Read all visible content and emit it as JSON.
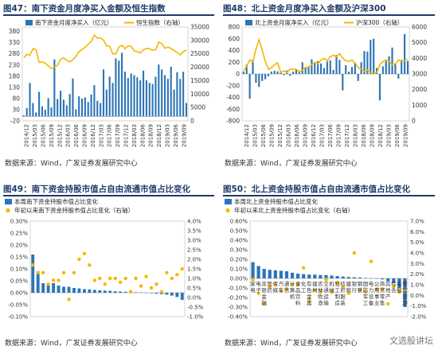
{
  "panels": [
    {
      "title": "图47：南下资金月度净买入金额及恒生指数",
      "source": "数据来源：Wind，广发证券发展研究中心"
    },
    {
      "title": "图48：北上资金月度净买入金额及沪深300",
      "source": "数据来源：Wind，广发证券发展研究中心"
    },
    {
      "title": "图49：南下资金持股市值占自由流通市值占比变化",
      "source": "数据来源：Wind，广发证券发展研究中心"
    },
    {
      "title": "图50：北上资金持股市值占自由流通市值占比变化",
      "source": "数据来源：Wind，广发证券发展研究中心"
    }
  ],
  "watermark": "文选股讲坛",
  "colors": {
    "bar": "#2e75b6",
    "line": "#f5b700",
    "title": "#1f3a68"
  },
  "chart_data": [
    {
      "type": "bar",
      "combo": "bar+line",
      "x_ticks": [
        "2014/12",
        "2015/03",
        "2015/06",
        "2015/09",
        "2015/12",
        "2016/03",
        "2016/06",
        "2016/09",
        "2016/12",
        "2017/03",
        "2017/06",
        "2017/09",
        "2017/12",
        "2018/03",
        "2018/06",
        "2018/09",
        "2018/12",
        "2019/03",
        "2019/06",
        "2019/09"
      ],
      "ylim": [
        -20,
        400
      ],
      "yticks": [
        -20,
        30,
        80,
        130,
        180,
        230,
        280,
        330,
        380
      ],
      "y2lim": [
        0,
        35000
      ],
      "y2ticks": [
        0,
        5000,
        10000,
        15000,
        20000,
        25000,
        30000,
        35000
      ],
      "series": [
        {
          "name": "南下资金月度净买入（亿元）",
          "type": "bar",
          "values": [
            5,
            38,
            150,
            60,
            18,
            110,
            45,
            30,
            82,
            40,
            255,
            78,
            115,
            75,
            50,
            100,
            170,
            32,
            90,
            80,
            85,
            64,
            98,
            140,
            70,
            60,
            210,
            120,
            178,
            150,
            260,
            250,
            285,
            200,
            172,
            192,
            185,
            175,
            162,
            205,
            162,
            150,
            145,
            178,
            232,
            210,
            185,
            168,
            222,
            120,
            198,
            168,
            200,
            60
          ]
        },
        {
          "name": "恒生指数（右轴）",
          "type": "line",
          "axis": "right",
          "values": [
            23600,
            24800,
            24500,
            27000,
            26500,
            21800,
            22000,
            21500,
            20500,
            19500,
            20100,
            20800,
            23000,
            23500,
            22500,
            22000,
            22800,
            24100,
            25800,
            26600,
            27500,
            28600,
            29700,
            32000,
            30800,
            31000,
            30100,
            28000,
            27800,
            25000,
            25000,
            27500,
            28200,
            26900,
            28000,
            27800,
            26100,
            25800,
            25400,
            26500,
            27000,
            26900,
            26300,
            26600,
            29400,
            28800,
            27100,
            27500,
            27000,
            26300,
            25400,
            24600,
            25900,
            26400
          ]
        }
      ]
    },
    {
      "type": "bar",
      "combo": "bar+line",
      "x_ticks": [
        "2014/12",
        "2015/03",
        "2015/06",
        "2015/09",
        "2015/12",
        "2016/03",
        "2016/06",
        "2016/09",
        "2016/12",
        "2017/03",
        "2017/06",
        "2017/09",
        "2017/12",
        "2018/03",
        "2018/06",
        "2018/09",
        "2018/12",
        "2019/03",
        "2019/06",
        "2019/09"
      ],
      "ylim": [
        -800,
        800
      ],
      "yticks": [
        -800,
        -600,
        -400,
        -200,
        0,
        200,
        400,
        600,
        800
      ],
      "y2lim": [
        0,
        6000
      ],
      "y2ticks": [
        0,
        1000,
        2000,
        3000,
        4000,
        5000,
        6000
      ],
      "series": [
        {
          "name": "北上资金月度净买入（亿元）",
          "type": "bar",
          "values": [
            40,
            160,
            -420,
            240,
            -150,
            -220,
            -120,
            -90,
            -40,
            40,
            55,
            45,
            30,
            -20,
            60,
            -30,
            40,
            80,
            40,
            200,
            120,
            130,
            250,
            180,
            220,
            180,
            100,
            210,
            230,
            70,
            320,
            240,
            -280,
            150,
            40,
            120,
            190,
            -120,
            200,
            390,
            380,
            580,
            600,
            100,
            -450,
            130,
            220,
            300,
            450,
            180,
            -80,
            240,
            680,
            220
          ]
        },
        {
          "name": "沪深300（右轴）",
          "type": "line",
          "axis": "right",
          "values": [
            3200,
            3500,
            3900,
            3800,
            4600,
            5200,
            4500,
            3800,
            3300,
            3400,
            3600,
            3700,
            3100,
            3200,
            3100,
            3300,
            3300,
            3300,
            3150,
            3250,
            3400,
            3450,
            3600,
            3750,
            3650,
            3900,
            4000,
            3850,
            4100,
            4200,
            4100,
            4300,
            4000,
            3850,
            3800,
            3900,
            3700,
            3400,
            3300,
            3200,
            3250,
            3100,
            3000,
            3100,
            3600,
            3800,
            3900,
            3800,
            3600,
            3650,
            3900,
            3800,
            3850,
            3950
          ]
        }
      ]
    },
    {
      "type": "bar",
      "combo": "bar+scatter",
      "categories": [
        "",
        "",
        "",
        "",
        "",
        "",
        "",
        "",
        "",
        "",
        "",
        "",
        "",
        "",
        "",
        "",
        "",
        "",
        "",
        "",
        "",
        "",
        "",
        "",
        "",
        "",
        "",
        "",
        "",
        ""
      ],
      "ylim": [
        -0.1,
        0.3
      ],
      "yticks": [
        "-0.10%",
        "-0.05%",
        "0.00%",
        "0.05%",
        "0.10%",
        "0.15%",
        "0.20%",
        "0.25%",
        "0.30%"
      ],
      "y2lim": [
        -1,
        4
      ],
      "y2ticks": [
        "-1.0%",
        "-0.5%",
        "0.0%",
        "0.5%",
        "1.0%",
        "1.5%",
        "2.0%",
        "2.5%",
        "3.0%",
        "3.5%",
        "4.0%"
      ],
      "series": [
        {
          "name": "本周南下资金持股市值占比变化",
          "type": "bar",
          "values": [
            0.16,
            0.09,
            0.04,
            0.035,
            0.04,
            0.03,
            0.025,
            0.025,
            0.02,
            0.018,
            0.015,
            0.014,
            0.012,
            0.01,
            0.009,
            0.008,
            0.006,
            0.005,
            0.004,
            0.003,
            0.002,
            0.001,
            0.0005,
            -0.002,
            -0.004,
            -0.006,
            -0.008,
            -0.012,
            -0.018,
            -0.03
          ]
        },
        {
          "name": "年初以来南下资金持股市值占比变化（右轴）",
          "type": "scatter",
          "axis": "right",
          "values": [
            1.7,
            1.3,
            1.3,
            0.7,
            0.9,
            0.9,
            1.3,
            -0.1,
            1.3,
            2.0,
            2.3,
            1.7,
            0.9,
            1.0,
            0.7,
            1.0,
            1.0,
            0.8,
            1.0,
            0.3,
            1.0,
            0.6,
            1.1,
            0.5,
            0.7,
            0.3,
            1.3,
            1.0,
            1.2,
            1.5
          ]
        }
      ]
    },
    {
      "type": "bar",
      "combo": "bar+scatter",
      "categories": [
        "家电",
        "电子",
        "非银金融",
        "医药",
        "传媒",
        "汽车",
        "通信",
        "计算机",
        "食品饮料",
        "化工",
        "有色金属",
        "建材",
        "农林牧渔",
        "交通运输",
        "机械",
        "轻工制造",
        "纺织服装",
        "建筑",
        "银行",
        "钢铁",
        "国防军工",
        "电力设备",
        "公用事业",
        "商贸零售",
        "房地产",
        "综合",
        "采掘",
        "餐饮旅游"
      ],
      "ylim": [
        -0.4,
        0.6
      ],
      "yticks": [
        "-0.40%",
        "-0.30%",
        "-0.20%",
        "-0.10%",
        "0.00%",
        "0.10%",
        "0.20%",
        "0.30%",
        "0.40%",
        "0.50%",
        "0.60%"
      ],
      "y2lim": [
        -2,
        7
      ],
      "y2ticks": [
        "-2.0%",
        "-1.0%",
        "0.0%",
        "1.0%",
        "2.0%",
        "3.0%",
        "4.0%",
        "5.0%",
        "6.0%",
        "7.0%"
      ],
      "series": [
        {
          "name": "本周北上资金持股市值占比变化",
          "type": "bar",
          "values": [
            0.17,
            0.13,
            0.1,
            0.09,
            0.085,
            0.08,
            0.075,
            0.06,
            0.05,
            0.045,
            0.04,
            0.04,
            0.035,
            0.035,
            0.03,
            0.025,
            0.02,
            0.015,
            0.012,
            0.01,
            0.005,
            0.003,
            0.001,
            -0.01,
            -0.03,
            -0.05,
            -0.1,
            -0.3
          ]
        },
        {
          "name": "年初以来北上资金持股市值占比变化（右轴）",
          "type": "scatter",
          "axis": "right",
          "values": [
            1.5,
            0.2,
            -0.8,
            0.8,
            1.0,
            0.4,
            0.6,
            1.0,
            1.0,
            2.6,
            -0.4,
            0.5,
            0.3,
            1.5,
            0.3,
            1.2,
            0.8,
            0.2,
            4.0,
            0.5,
            0.3,
            3.2,
            0.6,
            0.6,
            -0.8,
            0.8,
            0.3,
            0.5
          ]
        }
      ]
    }
  ]
}
